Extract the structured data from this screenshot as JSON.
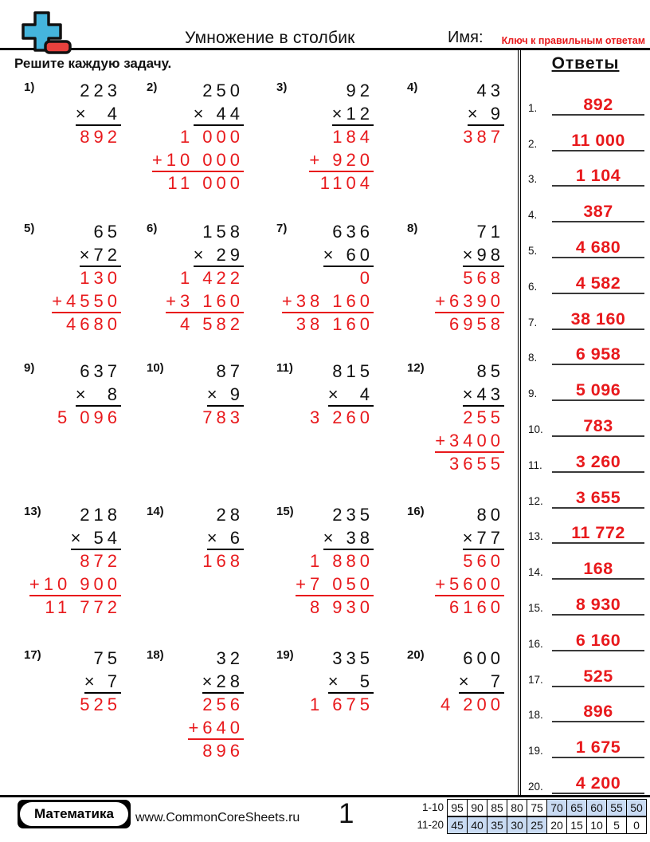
{
  "header": {
    "title": "Умножение в столбик",
    "name_label": "Имя:",
    "key_note": "Ключ к правильным ответам"
  },
  "instructions": "Решите каждую задачу.",
  "answers": {
    "title": "Ответы",
    "items": [
      {
        "n": "1.",
        "v": "892"
      },
      {
        "n": "2.",
        "v": "11 000"
      },
      {
        "n": "3.",
        "v": "1 104"
      },
      {
        "n": "4.",
        "v": "387"
      },
      {
        "n": "5.",
        "v": "4 680"
      },
      {
        "n": "6.",
        "v": "4 582"
      },
      {
        "n": "7.",
        "v": "38 160"
      },
      {
        "n": "8.",
        "v": "6 958"
      },
      {
        "n": "9.",
        "v": "5 096"
      },
      {
        "n": "10.",
        "v": "783"
      },
      {
        "n": "11.",
        "v": "3 260"
      },
      {
        "n": "12.",
        "v": "3 655"
      },
      {
        "n": "13.",
        "v": "11 772"
      },
      {
        "n": "14.",
        "v": "168"
      },
      {
        "n": "15.",
        "v": "8 930"
      },
      {
        "n": "16.",
        "v": "6 160"
      },
      {
        "n": "17.",
        "v": "525"
      },
      {
        "n": "18.",
        "v": "896"
      },
      {
        "n": "19.",
        "v": "1 675"
      },
      {
        "n": "20.",
        "v": "4 200"
      }
    ]
  },
  "problems": [
    {
      "label": "1)",
      "rows": [
        {
          "t": "223",
          "c": "k"
        },
        {
          "t": "×  4",
          "c": "k",
          "u": "k"
        },
        {
          "t": "892",
          "c": "r"
        }
      ]
    },
    {
      "label": "2)",
      "rows": [
        {
          "t": "250",
          "c": "k"
        },
        {
          "t": "× 44",
          "c": "k",
          "u": "k"
        },
        {
          "t": "1 000",
          "c": "r"
        },
        {
          "t": "+10 000",
          "c": "r",
          "u": "r"
        },
        {
          "t": "11 000",
          "c": "r"
        }
      ]
    },
    {
      "label": "3)",
      "rows": [
        {
          "t": "92",
          "c": "k"
        },
        {
          "t": "×12",
          "c": "k",
          "u": "k"
        },
        {
          "t": "184",
          "c": "r"
        },
        {
          "t": "+ 920",
          "c": "r",
          "u": "r"
        },
        {
          "t": "1104",
          "c": "r"
        }
      ]
    },
    {
      "label": "4)",
      "rows": [
        {
          "t": "43",
          "c": "k"
        },
        {
          "t": "× 9",
          "c": "k",
          "u": "k"
        },
        {
          "t": "387",
          "c": "r"
        }
      ]
    },
    {
      "label": "5)",
      "rows": [
        {
          "t": "65",
          "c": "k"
        },
        {
          "t": "×72",
          "c": "k",
          "u": "k"
        },
        {
          "t": "130",
          "c": "r"
        },
        {
          "t": "+4550",
          "c": "r",
          "u": "r"
        },
        {
          "t": "4680",
          "c": "r"
        }
      ]
    },
    {
      "label": "6)",
      "rows": [
        {
          "t": "158",
          "c": "k"
        },
        {
          "t": "× 29",
          "c": "k",
          "u": "k"
        },
        {
          "t": "1 422",
          "c": "r"
        },
        {
          "t": "+3 160",
          "c": "r",
          "u": "r"
        },
        {
          "t": "4 582",
          "c": "r"
        }
      ]
    },
    {
      "label": "7)",
      "rows": [
        {
          "t": "636",
          "c": "k"
        },
        {
          "t": "× 60",
          "c": "k",
          "u": "k"
        },
        {
          "t": "0",
          "c": "r"
        },
        {
          "t": "+38 160",
          "c": "r",
          "u": "r"
        },
        {
          "t": "38 160",
          "c": "r"
        }
      ]
    },
    {
      "label": "8)",
      "rows": [
        {
          "t": "71",
          "c": "k"
        },
        {
          "t": "×98",
          "c": "k",
          "u": "k"
        },
        {
          "t": "568",
          "c": "r"
        },
        {
          "t": "+6390",
          "c": "r",
          "u": "r"
        },
        {
          "t": "6958",
          "c": "r"
        }
      ]
    },
    {
      "label": "9)",
      "rows": [
        {
          "t": "637",
          "c": "k"
        },
        {
          "t": "×  8",
          "c": "k",
          "u": "k"
        },
        {
          "t": "5 096",
          "c": "r"
        }
      ]
    },
    {
      "label": "10)",
      "rows": [
        {
          "t": "87",
          "c": "k"
        },
        {
          "t": "× 9",
          "c": "k",
          "u": "k"
        },
        {
          "t": "783",
          "c": "r"
        }
      ]
    },
    {
      "label": "11)",
      "rows": [
        {
          "t": "815",
          "c": "k"
        },
        {
          "t": "×  4",
          "c": "k",
          "u": "k"
        },
        {
          "t": "3 260",
          "c": "r"
        }
      ]
    },
    {
      "label": "12)",
      "rows": [
        {
          "t": "85",
          "c": "k"
        },
        {
          "t": "×43",
          "c": "k",
          "u": "k"
        },
        {
          "t": "255",
          "c": "r"
        },
        {
          "t": "+3400",
          "c": "r",
          "u": "r"
        },
        {
          "t": "3655",
          "c": "r"
        }
      ]
    },
    {
      "label": "13)",
      "rows": [
        {
          "t": "218",
          "c": "k"
        },
        {
          "t": "× 54",
          "c": "k",
          "u": "k"
        },
        {
          "t": "872",
          "c": "r"
        },
        {
          "t": "+10 900",
          "c": "r",
          "u": "r"
        },
        {
          "t": "11 772",
          "c": "r"
        }
      ]
    },
    {
      "label": "14)",
      "rows": [
        {
          "t": "28",
          "c": "k"
        },
        {
          "t": "× 6",
          "c": "k",
          "u": "k"
        },
        {
          "t": "168",
          "c": "r"
        }
      ]
    },
    {
      "label": "15)",
      "rows": [
        {
          "t": "235",
          "c": "k"
        },
        {
          "t": "× 38",
          "c": "k",
          "u": "k"
        },
        {
          "t": "1 880",
          "c": "r"
        },
        {
          "t": "+7 050",
          "c": "r",
          "u": "r"
        },
        {
          "t": "8 930",
          "c": "r"
        }
      ]
    },
    {
      "label": "16)",
      "rows": [
        {
          "t": "80",
          "c": "k"
        },
        {
          "t": "×77",
          "c": "k",
          "u": "k"
        },
        {
          "t": "560",
          "c": "r"
        },
        {
          "t": "+5600",
          "c": "r",
          "u": "r"
        },
        {
          "t": "6160",
          "c": "r"
        }
      ]
    },
    {
      "label": "17)",
      "rows": [
        {
          "t": "75",
          "c": "k"
        },
        {
          "t": "× 7",
          "c": "k",
          "u": "k"
        },
        {
          "t": "525",
          "c": "r"
        }
      ]
    },
    {
      "label": "18)",
      "rows": [
        {
          "t": "32",
          "c": "k"
        },
        {
          "t": "×28",
          "c": "k",
          "u": "k"
        },
        {
          "t": "256",
          "c": "r"
        },
        {
          "t": "+640",
          "c": "r",
          "u": "r"
        },
        {
          "t": "896",
          "c": "r"
        }
      ]
    },
    {
      "label": "19)",
      "rows": [
        {
          "t": "335",
          "c": "k"
        },
        {
          "t": "×  5",
          "c": "k",
          "u": "k"
        },
        {
          "t": "1 675",
          "c": "r"
        }
      ]
    },
    {
      "label": "20)",
      "rows": [
        {
          "t": "600",
          "c": "k"
        },
        {
          "t": "×  7",
          "c": "k",
          "u": "k"
        },
        {
          "t": "4 200",
          "c": "r"
        }
      ]
    }
  ],
  "footer": {
    "brand": "Математика",
    "site": "www.CommonCoreSheets.ru",
    "page": "1",
    "grading": {
      "rows": [
        {
          "label": "1-10",
          "cells": [
            {
              "v": "95",
              "hl": false
            },
            {
              "v": "90",
              "hl": false
            },
            {
              "v": "85",
              "hl": false
            },
            {
              "v": "80",
              "hl": false
            },
            {
              "v": "75",
              "hl": false
            },
            {
              "v": "70",
              "hl": true
            },
            {
              "v": "65",
              "hl": true
            },
            {
              "v": "60",
              "hl": true
            },
            {
              "v": "55",
              "hl": true
            },
            {
              "v": "50",
              "hl": true
            }
          ]
        },
        {
          "label": "11-20",
          "cells": [
            {
              "v": "45",
              "hl": true
            },
            {
              "v": "40",
              "hl": true
            },
            {
              "v": "35",
              "hl": true
            },
            {
              "v": "30",
              "hl": true
            },
            {
              "v": "25",
              "hl": true
            },
            {
              "v": "20",
              "hl": false
            },
            {
              "v": "15",
              "hl": false
            },
            {
              "v": "10",
              "hl": false
            },
            {
              "v": "5",
              "hl": false
            },
            {
              "v": "0",
              "hl": false
            }
          ]
        }
      ]
    }
  },
  "colors": {
    "accent_red": "#e8191c",
    "logo_blue": "#45b5dd",
    "logo_red": "#e8413d",
    "grade_highlight": "#c9dbf3"
  }
}
